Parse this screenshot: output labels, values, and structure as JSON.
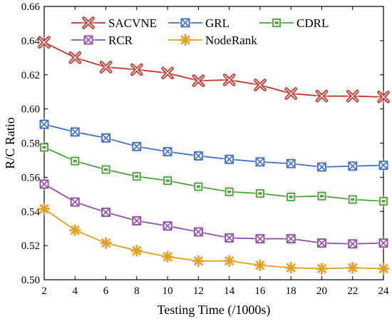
{
  "chart_data": {
    "type": "line",
    "title": "",
    "xlabel": "Testing Time (/1000s)",
    "ylabel": "R/C Ratio",
    "x": [
      2,
      4,
      6,
      8,
      10,
      12,
      14,
      16,
      18,
      20,
      22,
      24
    ],
    "xlim": [
      2,
      24
    ],
    "ylim": [
      0.5,
      0.66
    ],
    "xticks": [
      "2",
      "4",
      "6",
      "8",
      "10",
      "12",
      "14",
      "16",
      "18",
      "20",
      "22",
      "24"
    ],
    "yticks": [
      "0.50",
      "0.52",
      "0.54",
      "0.56",
      "0.58",
      "0.60",
      "0.62",
      "0.64",
      "0.66"
    ],
    "grid": false,
    "legend_position": "top",
    "series": [
      {
        "name": "SACVNE",
        "color": "#c0362c",
        "marker": "x-cross",
        "values": [
          0.639,
          0.63,
          0.6245,
          0.623,
          0.621,
          0.6165,
          0.617,
          0.614,
          0.609,
          0.6075,
          0.6075,
          0.607
        ]
      },
      {
        "name": "GRL",
        "color": "#3f72c0",
        "marker": "square-x",
        "values": [
          0.591,
          0.5865,
          0.583,
          0.578,
          0.575,
          0.5725,
          0.5705,
          0.569,
          0.568,
          0.566,
          0.5665,
          0.567
        ]
      },
      {
        "name": "CDRL",
        "color": "#4aa33c",
        "marker": "square-minus",
        "values": [
          0.5775,
          0.5695,
          0.5645,
          0.5605,
          0.558,
          0.5545,
          0.5515,
          0.5505,
          0.5485,
          0.549,
          0.547,
          0.546
        ]
      },
      {
        "name": "RCR",
        "color": "#8e4fa8",
        "marker": "square-x",
        "values": [
          0.556,
          0.5455,
          0.5395,
          0.5345,
          0.5315,
          0.528,
          0.5245,
          0.524,
          0.524,
          0.5215,
          0.521,
          0.5215
        ]
      },
      {
        "name": "NodeRank",
        "color": "#e0a21c",
        "marker": "star",
        "values": [
          0.5415,
          0.529,
          0.5215,
          0.517,
          0.5135,
          0.511,
          0.511,
          0.5085,
          0.507,
          0.5065,
          0.507,
          0.5065
        ]
      }
    ]
  }
}
